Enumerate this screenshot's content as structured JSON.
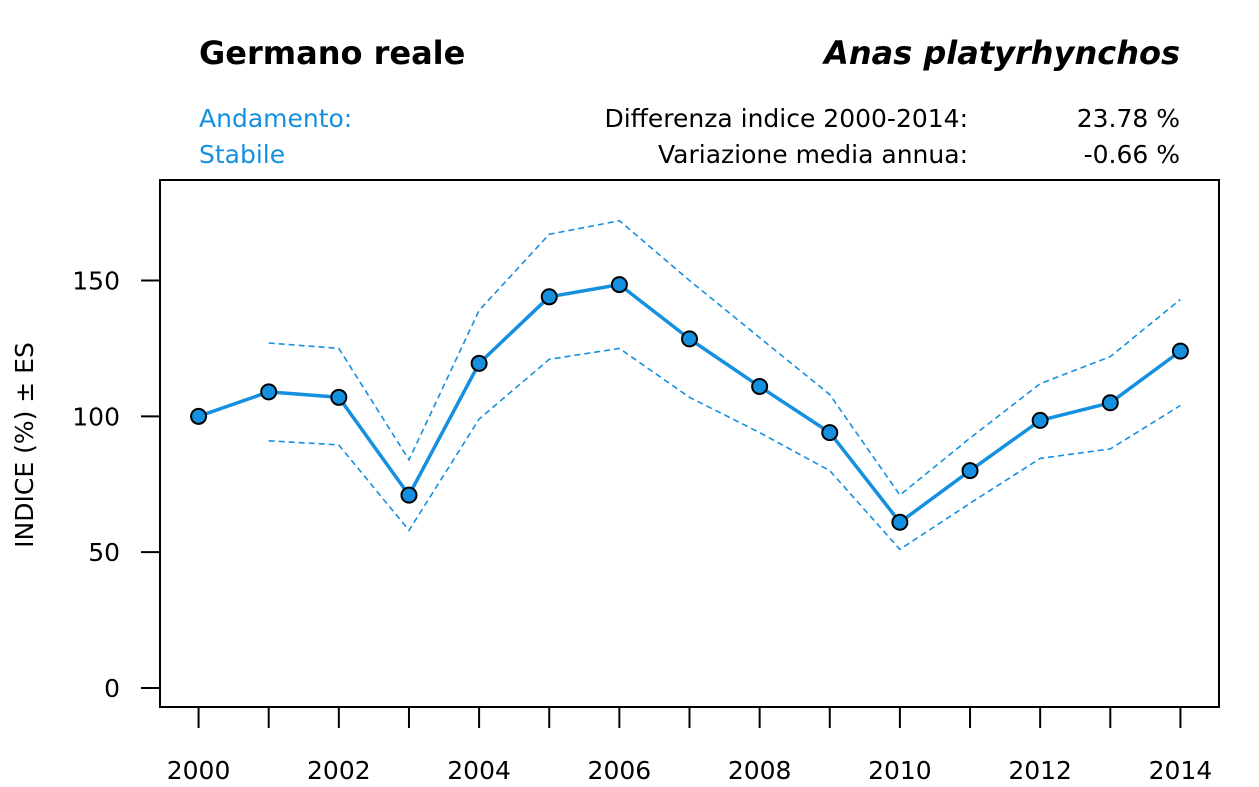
{
  "header": {
    "common_name": "Germano reale",
    "scientific_name": "Anas platyrhynchos",
    "trend_label": "Andamento:",
    "trend_value": "Stabile",
    "diff_label": "Differenza indice 2000-2014:",
    "diff_value": "23.78 %",
    "annual_label": "Variazione media annua:",
    "annual_value": "-0.66 %"
  },
  "colors": {
    "accent": "#1590e0",
    "text": "#000000",
    "marker_edge": "#000000"
  },
  "chart_data": {
    "type": "line",
    "ylabel": "INDICE (%) ± ES",
    "xlabel": "",
    "x": [
      2000,
      2001,
      2002,
      2003,
      2004,
      2005,
      2006,
      2007,
      2008,
      2009,
      2010,
      2011,
      2012,
      2013,
      2014
    ],
    "xlim": [
      1999.45,
      2014.55
    ],
    "ylim": [
      -7,
      187
    ],
    "yticks": [
      0,
      50,
      100,
      150
    ],
    "ytick_labels": [
      "0",
      "50",
      "100",
      "150"
    ],
    "xticks": [
      2000,
      2001,
      2002,
      2003,
      2004,
      2005,
      2006,
      2007,
      2008,
      2009,
      2010,
      2011,
      2012,
      2013,
      2014
    ],
    "xtick_labels": [
      "2000",
      "2002",
      "2004",
      "2006",
      "2008",
      "2010",
      "2012",
      "2014"
    ],
    "series": [
      {
        "name": "Indice",
        "style": "solid-markers",
        "values": [
          100,
          109,
          107,
          71,
          119.5,
          144,
          148.5,
          128.5,
          111,
          94,
          61,
          80,
          98.5,
          105,
          124
        ]
      },
      {
        "name": "Indice + ES",
        "style": "dashed",
        "values": [
          null,
          127,
          125,
          84,
          139,
          167,
          172,
          150,
          129,
          108,
          71,
          92,
          112,
          122,
          143
        ]
      },
      {
        "name": "Indice - ES",
        "style": "dashed",
        "values": [
          null,
          91,
          89.5,
          58,
          99,
          121,
          125,
          107,
          94,
          80,
          51,
          68,
          84.5,
          88,
          104
        ]
      }
    ]
  }
}
